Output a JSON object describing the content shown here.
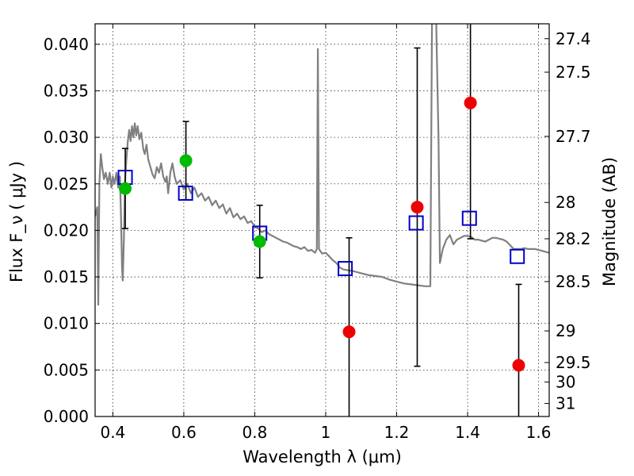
{
  "chart_data": {
    "type": "scatter",
    "title": "",
    "xlabel": "Wavelength  λ (μm)",
    "ylabel": "Flux  F_ν  ( μJy )",
    "y2label": "Magnitude (AB)",
    "xlim": [
      0.35,
      1.63
    ],
    "ylim": [
      0.0,
      0.0422
    ],
    "grid": true,
    "x_ticks": [
      0.4,
      0.6,
      0.8,
      1.0,
      1.2,
      1.4,
      1.6
    ],
    "x_tick_labels": [
      "0.4",
      "0.6",
      "0.8",
      "1",
      "1.2",
      "1.4",
      "1.6"
    ],
    "y_ticks": [
      0.0,
      0.005,
      0.01,
      0.015,
      0.02,
      0.025,
      0.03,
      0.035,
      0.04
    ],
    "y_tick_labels": [
      "0.000",
      "0.005",
      "0.010",
      "0.015",
      "0.020",
      "0.025",
      "0.030",
      "0.035",
      "0.040"
    ],
    "y2_ticks": [
      {
        "label": "27.4",
        "flux": 0.0406
      },
      {
        "label": "27.5",
        "flux": 0.037
      },
      {
        "label": "27.7",
        "flux": 0.0301
      },
      {
        "label": "28",
        "flux": 0.023
      },
      {
        "label": "28.2",
        "flux": 0.0191
      },
      {
        "label": "28.5",
        "flux": 0.0145
      },
      {
        "label": "29",
        "flux": 0.0092
      },
      {
        "label": "29.5",
        "flux": 0.0058
      },
      {
        "label": "30",
        "flux": 0.0037
      },
      {
        "label": "31",
        "flux": 0.0014
      }
    ],
    "series": [
      {
        "kind": "model-spectrum",
        "color": "#808080",
        "points": [
          [
            0.35,
            0.0215
          ],
          [
            0.356,
            0.0225
          ],
          [
            0.359,
            0.012
          ],
          [
            0.362,
            0.025
          ],
          [
            0.366,
            0.0282
          ],
          [
            0.37,
            0.0268
          ],
          [
            0.375,
            0.0255
          ],
          [
            0.38,
            0.0262
          ],
          [
            0.386,
            0.025
          ],
          [
            0.391,
            0.0262
          ],
          [
            0.396,
            0.0246
          ],
          [
            0.4,
            0.0258
          ],
          [
            0.405,
            0.025
          ],
          [
            0.41,
            0.0262
          ],
          [
            0.415,
            0.0246
          ],
          [
            0.42,
            0.0258
          ],
          [
            0.423,
            0.0215
          ],
          [
            0.426,
            0.016
          ],
          [
            0.428,
            0.0146
          ],
          [
            0.431,
            0.019
          ],
          [
            0.434,
            0.025
          ],
          [
            0.438,
            0.0275
          ],
          [
            0.442,
            0.0295
          ],
          [
            0.446,
            0.0308
          ],
          [
            0.45,
            0.0296
          ],
          [
            0.454,
            0.0312
          ],
          [
            0.458,
            0.03
          ],
          [
            0.462,
            0.0315
          ],
          [
            0.466,
            0.0302
          ],
          [
            0.47,
            0.0312
          ],
          [
            0.475,
            0.0298
          ],
          [
            0.48,
            0.0305
          ],
          [
            0.486,
            0.0287
          ],
          [
            0.49,
            0.0282
          ],
          [
            0.495,
            0.0292
          ],
          [
            0.5,
            0.0276
          ],
          [
            0.506,
            0.0268
          ],
          [
            0.512,
            0.026
          ],
          [
            0.518,
            0.0256
          ],
          [
            0.524,
            0.0268
          ],
          [
            0.53,
            0.0262
          ],
          [
            0.536,
            0.0272
          ],
          [
            0.542,
            0.0258
          ],
          [
            0.548,
            0.0252
          ],
          [
            0.552,
            0.0258
          ],
          [
            0.556,
            0.024
          ],
          [
            0.562,
            0.0262
          ],
          [
            0.568,
            0.0272
          ],
          [
            0.574,
            0.0258
          ],
          [
            0.58,
            0.025
          ],
          [
            0.59,
            0.0254
          ],
          [
            0.6,
            0.0244
          ],
          [
            0.61,
            0.025
          ],
          [
            0.62,
            0.024
          ],
          [
            0.63,
            0.0246
          ],
          [
            0.64,
            0.0236
          ],
          [
            0.65,
            0.024
          ],
          [
            0.66,
            0.0232
          ],
          [
            0.67,
            0.0236
          ],
          [
            0.68,
            0.0227
          ],
          [
            0.69,
            0.0232
          ],
          [
            0.7,
            0.0224
          ],
          [
            0.71,
            0.0228
          ],
          [
            0.72,
            0.0218
          ],
          [
            0.73,
            0.0224
          ],
          [
            0.74,
            0.0214
          ],
          [
            0.75,
            0.0218
          ],
          [
            0.76,
            0.0212
          ],
          [
            0.77,
            0.0215
          ],
          [
            0.78,
            0.0208
          ],
          [
            0.79,
            0.021
          ],
          [
            0.8,
            0.0204
          ],
          [
            0.81,
            0.0202
          ],
          [
            0.82,
            0.0198
          ],
          [
            0.83,
            0.02
          ],
          [
            0.84,
            0.0196
          ],
          [
            0.85,
            0.0194
          ],
          [
            0.86,
            0.0192
          ],
          [
            0.87,
            0.019
          ],
          [
            0.88,
            0.0188
          ],
          [
            0.89,
            0.0187
          ],
          [
            0.9,
            0.0185
          ],
          [
            0.91,
            0.0183
          ],
          [
            0.92,
            0.0182
          ],
          [
            0.93,
            0.018
          ],
          [
            0.94,
            0.0182
          ],
          [
            0.95,
            0.0178
          ],
          [
            0.96,
            0.0179
          ],
          [
            0.97,
            0.0176
          ],
          [
            0.975,
            0.018
          ],
          [
            0.978,
            0.0395
          ],
          [
            0.981,
            0.018
          ],
          [
            0.99,
            0.0175
          ],
          [
            1.0,
            0.0176
          ],
          [
            1.01,
            0.0172
          ],
          [
            1.02,
            0.0168
          ],
          [
            1.03,
            0.0165
          ],
          [
            1.04,
            0.016
          ],
          [
            1.05,
            0.0158
          ],
          [
            1.065,
            0.0157
          ],
          [
            1.08,
            0.0156
          ],
          [
            1.1,
            0.0154
          ],
          [
            1.12,
            0.0152
          ],
          [
            1.14,
            0.0151
          ],
          [
            1.16,
            0.015
          ],
          [
            1.18,
            0.0147
          ],
          [
            1.2,
            0.0145
          ],
          [
            1.22,
            0.0143
          ],
          [
            1.24,
            0.0142
          ],
          [
            1.26,
            0.0141
          ],
          [
            1.28,
            0.014
          ],
          [
            1.295,
            0.014
          ],
          [
            1.3,
            0.045
          ],
          [
            1.31,
            0.045
          ],
          [
            1.318,
            0.03
          ],
          [
            1.322,
            0.0165
          ],
          [
            1.33,
            0.018
          ],
          [
            1.34,
            0.019
          ],
          [
            1.35,
            0.0195
          ],
          [
            1.36,
            0.0185
          ],
          [
            1.37,
            0.019
          ],
          [
            1.38,
            0.0192
          ],
          [
            1.39,
            0.0194
          ],
          [
            1.4,
            0.0194
          ],
          [
            1.41,
            0.0193
          ],
          [
            1.42,
            0.019
          ],
          [
            1.43,
            0.019
          ],
          [
            1.44,
            0.0189
          ],
          [
            1.45,
            0.0188
          ],
          [
            1.46,
            0.019
          ],
          [
            1.47,
            0.0192
          ],
          [
            1.48,
            0.0192
          ],
          [
            1.49,
            0.0191
          ],
          [
            1.5,
            0.019
          ],
          [
            1.51,
            0.0188
          ],
          [
            1.52,
            0.0184
          ],
          [
            1.53,
            0.018
          ],
          [
            1.54,
            0.018
          ],
          [
            1.55,
            0.018
          ],
          [
            1.56,
            0.0181
          ],
          [
            1.57,
            0.018
          ],
          [
            1.58,
            0.018
          ],
          [
            1.59,
            0.018
          ],
          [
            1.6,
            0.0179
          ],
          [
            1.61,
            0.0178
          ],
          [
            1.62,
            0.0177
          ],
          [
            1.63,
            0.0176
          ]
        ]
      },
      {
        "kind": "model-photometry",
        "marker": "open-square",
        "color": "#0000cc",
        "points": [
          [
            0.435,
            0.0257
          ],
          [
            0.605,
            0.024
          ],
          [
            0.814,
            0.0197
          ],
          [
            1.055,
            0.0159
          ],
          [
            1.255,
            0.0208
          ],
          [
            1.405,
            0.0213
          ],
          [
            1.54,
            0.0172
          ]
        ]
      },
      {
        "kind": "observed-detections",
        "marker": "filled-circle",
        "color": "#00bb00",
        "points": [
          [
            0.435,
            0.0245,
            0.0043
          ],
          [
            0.606,
            0.0275,
            0.0042
          ],
          [
            0.814,
            0.0188,
            0.0039
          ]
        ]
      },
      {
        "kind": "observed-nondetections",
        "marker": "filled-circle",
        "color": "#ee0000",
        "points": [
          [
            1.066,
            0.0091,
            0.0101
          ],
          [
            1.258,
            0.0225,
            0.0171
          ],
          [
            1.408,
            0.0337,
            0.0146
          ],
          [
            1.544,
            0.0055,
            0.0087
          ]
        ]
      }
    ]
  }
}
